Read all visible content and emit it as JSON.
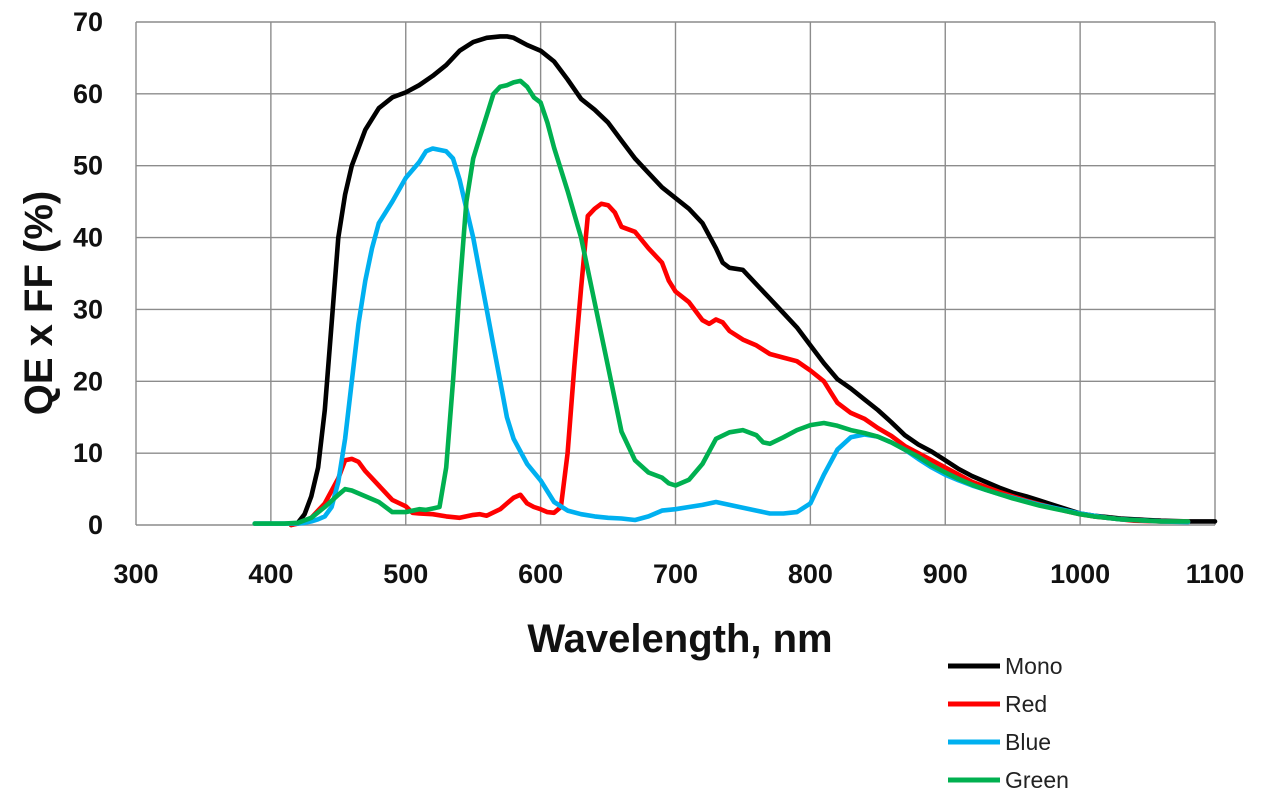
{
  "chart_data": {
    "type": "line",
    "title": "",
    "xlabel": "Wavelength, nm",
    "ylabel": "QE x FF (%)",
    "xlim": [
      300,
      1100
    ],
    "ylim": [
      0,
      70
    ],
    "xticks": [
      300,
      400,
      500,
      600,
      700,
      800,
      900,
      1000,
      1100
    ],
    "yticks": [
      0,
      10,
      20,
      30,
      40,
      50,
      60,
      70
    ],
    "grid": true,
    "legend_position": "bottom-right",
    "series": [
      {
        "name": "Mono",
        "color": "#000000",
        "points": [
          [
            415,
            0
          ],
          [
            420,
            0.3
          ],
          [
            425,
            1.5
          ],
          [
            430,
            4
          ],
          [
            435,
            8
          ],
          [
            440,
            16
          ],
          [
            445,
            28
          ],
          [
            450,
            40
          ],
          [
            455,
            46
          ],
          [
            460,
            50
          ],
          [
            470,
            55
          ],
          [
            480,
            58
          ],
          [
            490,
            59.5
          ],
          [
            500,
            60.2
          ],
          [
            510,
            61.2
          ],
          [
            520,
            62.5
          ],
          [
            530,
            64
          ],
          [
            540,
            66
          ],
          [
            550,
            67.2
          ],
          [
            560,
            67.8
          ],
          [
            570,
            68
          ],
          [
            575,
            68
          ],
          [
            580,
            67.8
          ],
          [
            590,
            66.8
          ],
          [
            600,
            66
          ],
          [
            610,
            64.5
          ],
          [
            620,
            62
          ],
          [
            630,
            59.3
          ],
          [
            640,
            57.8
          ],
          [
            650,
            56
          ],
          [
            660,
            53.5
          ],
          [
            670,
            51
          ],
          [
            680,
            49
          ],
          [
            690,
            47
          ],
          [
            700,
            45.5
          ],
          [
            710,
            44
          ],
          [
            720,
            42
          ],
          [
            730,
            38.5
          ],
          [
            735,
            36.5
          ],
          [
            740,
            35.8
          ],
          [
            750,
            35.5
          ],
          [
            760,
            33.5
          ],
          [
            770,
            31.5
          ],
          [
            780,
            29.5
          ],
          [
            790,
            27.5
          ],
          [
            800,
            25
          ],
          [
            810,
            22.5
          ],
          [
            820,
            20.3
          ],
          [
            830,
            19
          ],
          [
            840,
            17.5
          ],
          [
            850,
            16
          ],
          [
            860,
            14.3
          ],
          [
            870,
            12.5
          ],
          [
            880,
            11.2
          ],
          [
            890,
            10.2
          ],
          [
            900,
            9
          ],
          [
            910,
            7.8
          ],
          [
            920,
            6.8
          ],
          [
            930,
            6
          ],
          [
            940,
            5.2
          ],
          [
            950,
            4.5
          ],
          [
            960,
            4
          ],
          [
            970,
            3.4
          ],
          [
            980,
            2.8
          ],
          [
            990,
            2.2
          ],
          [
            1000,
            1.6
          ],
          [
            1010,
            1.3
          ],
          [
            1020,
            1.1
          ],
          [
            1030,
            0.9
          ],
          [
            1040,
            0.8
          ],
          [
            1050,
            0.7
          ],
          [
            1060,
            0.6
          ],
          [
            1080,
            0.5
          ],
          [
            1100,
            0.5
          ]
        ]
      },
      {
        "name": "Red",
        "color": "#ff0000",
        "points": [
          [
            415,
            0
          ],
          [
            420,
            0.2
          ],
          [
            430,
            1
          ],
          [
            440,
            3
          ],
          [
            450,
            6.5
          ],
          [
            455,
            9
          ],
          [
            460,
            9.2
          ],
          [
            465,
            8.8
          ],
          [
            470,
            7.5
          ],
          [
            480,
            5.5
          ],
          [
            490,
            3.5
          ],
          [
            500,
            2.6
          ],
          [
            505,
            1.7
          ],
          [
            510,
            1.6
          ],
          [
            520,
            1.5
          ],
          [
            530,
            1.2
          ],
          [
            540,
            1
          ],
          [
            550,
            1.4
          ],
          [
            555,
            1.5
          ],
          [
            560,
            1.3
          ],
          [
            570,
            2.2
          ],
          [
            580,
            3.8
          ],
          [
            585,
            4.2
          ],
          [
            590,
            3
          ],
          [
            595,
            2.5
          ],
          [
            600,
            2.2
          ],
          [
            605,
            1.8
          ],
          [
            610,
            1.7
          ],
          [
            615,
            2.5
          ],
          [
            620,
            10
          ],
          [
            625,
            22
          ],
          [
            630,
            33
          ],
          [
            635,
            43
          ],
          [
            640,
            44
          ],
          [
            645,
            44.7
          ],
          [
            650,
            44.5
          ],
          [
            655,
            43.5
          ],
          [
            660,
            41.5
          ],
          [
            670,
            40.8
          ],
          [
            680,
            38.5
          ],
          [
            690,
            36.5
          ],
          [
            695,
            34
          ],
          [
            700,
            32.5
          ],
          [
            710,
            31
          ],
          [
            720,
            28.5
          ],
          [
            725,
            28
          ],
          [
            730,
            28.6
          ],
          [
            735,
            28.2
          ],
          [
            740,
            27
          ],
          [
            750,
            25.8
          ],
          [
            760,
            25
          ],
          [
            770,
            23.8
          ],
          [
            780,
            23.3
          ],
          [
            790,
            22.8
          ],
          [
            800,
            21.5
          ],
          [
            810,
            20
          ],
          [
            815,
            18.5
          ],
          [
            820,
            17
          ],
          [
            830,
            15.6
          ],
          [
            840,
            14.8
          ],
          [
            850,
            13.5
          ],
          [
            860,
            12.4
          ],
          [
            870,
            11
          ],
          [
            880,
            10
          ],
          [
            890,
            9
          ],
          [
            900,
            8
          ],
          [
            910,
            7
          ],
          [
            920,
            6
          ],
          [
            930,
            5.3
          ],
          [
            940,
            4.6
          ],
          [
            950,
            4
          ],
          [
            960,
            3.4
          ],
          [
            970,
            2.9
          ],
          [
            980,
            2.4
          ],
          [
            990,
            1.9
          ],
          [
            1000,
            1.5
          ],
          [
            1010,
            1.2
          ],
          [
            1020,
            1
          ],
          [
            1030,
            0.8
          ],
          [
            1040,
            0.6
          ],
          [
            1060,
            0.5
          ],
          [
            1080,
            0.5
          ]
        ]
      },
      {
        "name": "Blue",
        "color": "#00b0f0",
        "points": [
          [
            388,
            0.2
          ],
          [
            400,
            0.2
          ],
          [
            410,
            0.2
          ],
          [
            420,
            0.2
          ],
          [
            425,
            0.3
          ],
          [
            430,
            0.5
          ],
          [
            435,
            0.8
          ],
          [
            440,
            1.2
          ],
          [
            445,
            2.5
          ],
          [
            450,
            6
          ],
          [
            455,
            12
          ],
          [
            460,
            20
          ],
          [
            465,
            28
          ],
          [
            470,
            34
          ],
          [
            475,
            38.5
          ],
          [
            480,
            42
          ],
          [
            490,
            45
          ],
          [
            500,
            48.3
          ],
          [
            510,
            50.5
          ],
          [
            515,
            52
          ],
          [
            520,
            52.4
          ],
          [
            525,
            52.2
          ],
          [
            530,
            52
          ],
          [
            535,
            51
          ],
          [
            540,
            48
          ],
          [
            545,
            44
          ],
          [
            550,
            40
          ],
          [
            555,
            35
          ],
          [
            560,
            30
          ],
          [
            565,
            25
          ],
          [
            570,
            20
          ],
          [
            575,
            15
          ],
          [
            580,
            12
          ],
          [
            590,
            8.5
          ],
          [
            600,
            6.2
          ],
          [
            610,
            3.2
          ],
          [
            620,
            2
          ],
          [
            630,
            1.5
          ],
          [
            640,
            1.2
          ],
          [
            650,
            1
          ],
          [
            660,
            0.9
          ],
          [
            670,
            0.7
          ],
          [
            680,
            1.2
          ],
          [
            690,
            2
          ],
          [
            700,
            2.2
          ],
          [
            710,
            2.5
          ],
          [
            720,
            2.8
          ],
          [
            730,
            3.2
          ],
          [
            740,
            2.8
          ],
          [
            750,
            2.4
          ],
          [
            760,
            2
          ],
          [
            770,
            1.6
          ],
          [
            780,
            1.6
          ],
          [
            790,
            1.8
          ],
          [
            800,
            3
          ],
          [
            810,
            7
          ],
          [
            820,
            10.5
          ],
          [
            830,
            12.2
          ],
          [
            840,
            12.6
          ],
          [
            850,
            12.3
          ],
          [
            860,
            11.5
          ],
          [
            870,
            10.5
          ],
          [
            880,
            9.2
          ],
          [
            890,
            8
          ],
          [
            900,
            7
          ],
          [
            910,
            6.2
          ],
          [
            920,
            5.5
          ],
          [
            930,
            4.9
          ],
          [
            940,
            4.3
          ],
          [
            950,
            3.8
          ],
          [
            960,
            3.3
          ],
          [
            970,
            2.8
          ],
          [
            980,
            2.4
          ],
          [
            990,
            2
          ],
          [
            1000,
            1.6
          ],
          [
            1010,
            1.3
          ],
          [
            1020,
            1
          ],
          [
            1030,
            0.8
          ],
          [
            1040,
            0.7
          ],
          [
            1050,
            0.6
          ],
          [
            1060,
            0.5
          ],
          [
            1080,
            0.4
          ]
        ]
      },
      {
        "name": "Green",
        "color": "#00b050",
        "points": [
          [
            388,
            0.2
          ],
          [
            400,
            0.2
          ],
          [
            410,
            0.2
          ],
          [
            420,
            0.3
          ],
          [
            430,
            1
          ],
          [
            440,
            2.5
          ],
          [
            450,
            4.2
          ],
          [
            455,
            5
          ],
          [
            460,
            4.8
          ],
          [
            470,
            4
          ],
          [
            480,
            3.2
          ],
          [
            490,
            1.8
          ],
          [
            500,
            1.8
          ],
          [
            510,
            2.2
          ],
          [
            515,
            2.1
          ],
          [
            520,
            2.3
          ],
          [
            525,
            2.5
          ],
          [
            530,
            8
          ],
          [
            535,
            20
          ],
          [
            540,
            33
          ],
          [
            545,
            45
          ],
          [
            550,
            51
          ],
          [
            555,
            54
          ],
          [
            560,
            57
          ],
          [
            565,
            60
          ],
          [
            570,
            61
          ],
          [
            575,
            61.2
          ],
          [
            580,
            61.6
          ],
          [
            585,
            61.8
          ],
          [
            590,
            61
          ],
          [
            595,
            59.5
          ],
          [
            600,
            58.8
          ],
          [
            605,
            56
          ],
          [
            610,
            52.5
          ],
          [
            620,
            46.5
          ],
          [
            630,
            40
          ],
          [
            640,
            31
          ],
          [
            650,
            22
          ],
          [
            660,
            13
          ],
          [
            670,
            9
          ],
          [
            680,
            7.3
          ],
          [
            690,
            6.6
          ],
          [
            695,
            5.8
          ],
          [
            700,
            5.5
          ],
          [
            710,
            6.3
          ],
          [
            720,
            8.5
          ],
          [
            730,
            12
          ],
          [
            740,
            12.9
          ],
          [
            750,
            13.2
          ],
          [
            760,
            12.5
          ],
          [
            765,
            11.5
          ],
          [
            770,
            11.3
          ],
          [
            780,
            12.2
          ],
          [
            790,
            13.2
          ],
          [
            800,
            13.9
          ],
          [
            810,
            14.2
          ],
          [
            820,
            13.8
          ],
          [
            830,
            13.2
          ],
          [
            840,
            12.8
          ],
          [
            850,
            12.3
          ],
          [
            860,
            11.5
          ],
          [
            870,
            10.5
          ],
          [
            880,
            9.5
          ],
          [
            890,
            8.3
          ],
          [
            900,
            7.3
          ],
          [
            910,
            6.4
          ],
          [
            920,
            5.6
          ],
          [
            930,
            4.9
          ],
          [
            940,
            4.3
          ],
          [
            950,
            3.7
          ],
          [
            960,
            3.2
          ],
          [
            970,
            2.7
          ],
          [
            980,
            2.3
          ],
          [
            990,
            1.9
          ],
          [
            1000,
            1.5
          ],
          [
            1010,
            1.2
          ],
          [
            1020,
            1
          ],
          [
            1030,
            0.8
          ],
          [
            1040,
            0.7
          ],
          [
            1050,
            0.6
          ],
          [
            1060,
            0.5
          ],
          [
            1080,
            0.5
          ]
        ]
      }
    ]
  }
}
